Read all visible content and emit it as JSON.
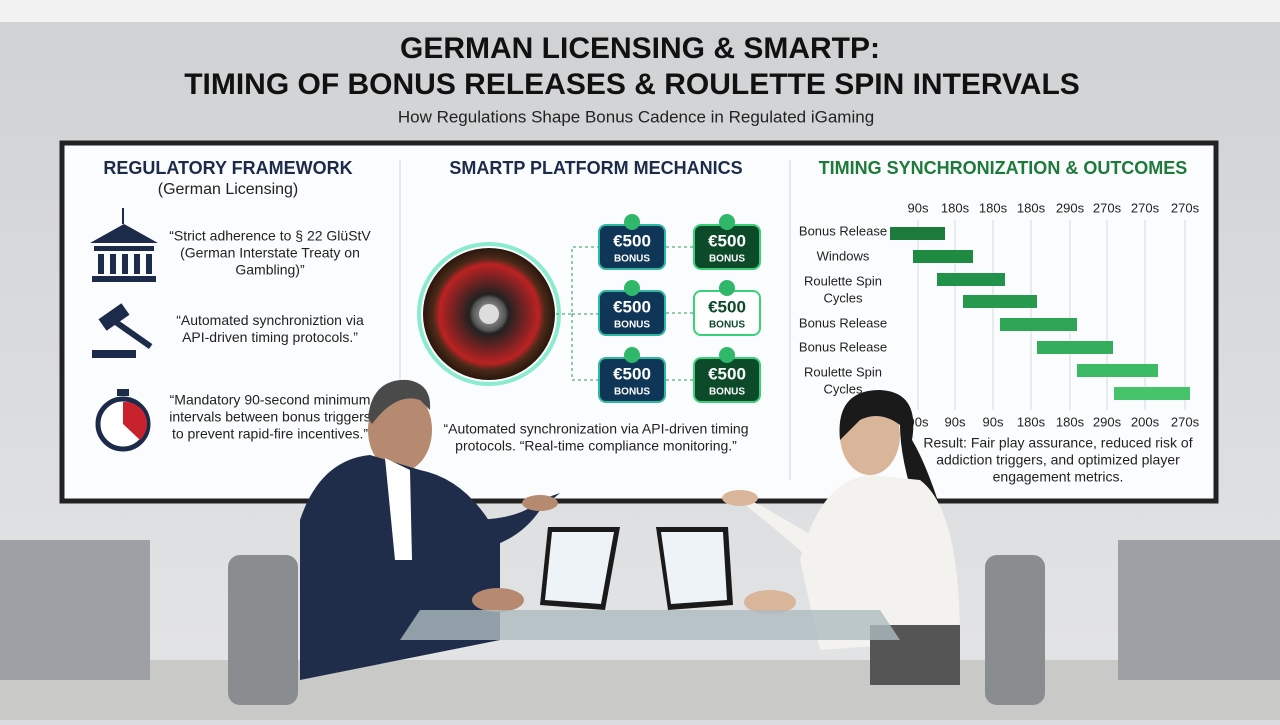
{
  "header": {
    "title_line1": "GERMAN LICENSING & SMARTP:",
    "title_line2": "TIMING OF BONUS RELEASES & ROULETTE SPIN INTERVALS",
    "subtitle": "How Regulations Shape Bonus Cadence in Regulated iGaming"
  },
  "panels": [
    {
      "title": "REGULATORY FRAMEWORK",
      "subtitle": "(German Licensing)",
      "items": [
        [
          "“Strict adherence to § 22 GlüStV",
          "(German Interstate Treaty on",
          "Gambling)”"
        ],
        [
          "“Automated synchroniztion via",
          "API-driven timing protocols.”"
        ],
        [
          "“Mandatory 90-second minimum",
          "intervals between bonus triggers",
          "to prevent rapid-fire incentives.”"
        ]
      ]
    },
    {
      "title": "SMARTP PLATFORM MECHANICS",
      "cards": [
        {
          "amount": "€500",
          "label": "BONUS"
        },
        {
          "amount": "€500",
          "label": "BONUS"
        },
        {
          "amount": "€500",
          "label": "BONUS"
        },
        {
          "amount": "€500",
          "label": "BONUS"
        },
        {
          "amount": "€500",
          "label": "BONUS"
        },
        {
          "amount": "€500",
          "label": "BONUS"
        }
      ],
      "caption": [
        "“Automated synchronization via API-driven timing",
        "protocols. “Real-time compliance monitoring.”"
      ]
    },
    {
      "title": "TIMING SYNCHRONIZATION & OUTCOMES",
      "top_ticks": [
        "90s",
        "180s",
        "180s",
        "180s",
        "290s",
        "270s",
        "270s",
        "270s"
      ],
      "rows": [
        "Bonus Release",
        "Windows",
        "Roulette Spin",
        "Cycles",
        "Bonus Release",
        "Bonus Release",
        "Roulette Spin",
        "Cycles"
      ],
      "bottom_ticks": [
        "90s",
        "90s",
        "90s",
        "180s",
        "180s",
        "290s",
        "200s",
        "270s"
      ],
      "result": [
        "Result: Fair play assurance, reduced risk of",
        "addiction triggers, and optimized player",
        "engagement metrics."
      ]
    }
  ]
}
